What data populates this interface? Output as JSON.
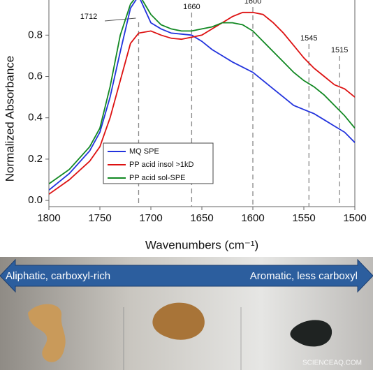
{
  "chart_data": {
    "type": "line",
    "y_label": "Normalized Absorbance",
    "x_label": "Wavenumbers (cm⁻¹)",
    "x": [
      1800,
      1780,
      1760,
      1750,
      1740,
      1730,
      1720,
      1712,
      1700,
      1690,
      1680,
      1670,
      1660,
      1650,
      1640,
      1630,
      1620,
      1610,
      1600,
      1590,
      1580,
      1570,
      1560,
      1550,
      1540,
      1530,
      1520,
      1510,
      1500
    ],
    "series": [
      {
        "name": "MQ SPE",
        "color": "#2233dd",
        "values": [
          0.05,
          0.13,
          0.24,
          0.33,
          0.5,
          0.72,
          0.93,
          0.99,
          0.86,
          0.83,
          0.81,
          0.805,
          0.8,
          0.77,
          0.73,
          0.7,
          0.67,
          0.645,
          0.62,
          0.58,
          0.54,
          0.5,
          0.46,
          0.44,
          0.42,
          0.39,
          0.36,
          0.33,
          0.28
        ]
      },
      {
        "name": "PP acid insol >1kD",
        "color": "#dd1111",
        "values": [
          0.03,
          0.1,
          0.19,
          0.26,
          0.4,
          0.58,
          0.76,
          0.81,
          0.82,
          0.8,
          0.785,
          0.78,
          0.79,
          0.8,
          0.83,
          0.86,
          0.89,
          0.91,
          0.91,
          0.9,
          0.86,
          0.81,
          0.75,
          0.69,
          0.64,
          0.6,
          0.56,
          0.54,
          0.5
        ]
      },
      {
        "name": "PP acid sol-SPE",
        "color": "#118822",
        "values": [
          0.08,
          0.15,
          0.26,
          0.35,
          0.55,
          0.8,
          0.95,
          1.0,
          0.9,
          0.85,
          0.83,
          0.82,
          0.82,
          0.83,
          0.84,
          0.86,
          0.86,
          0.85,
          0.82,
          0.77,
          0.72,
          0.67,
          0.62,
          0.58,
          0.55,
          0.51,
          0.46,
          0.41,
          0.35
        ]
      }
    ],
    "reference_lines": [
      1712,
      1660,
      1600,
      1545,
      1515
    ],
    "xlim": [
      1800,
      1500
    ],
    "xticks": [
      1800,
      1750,
      1700,
      1650,
      1600,
      1550,
      1500
    ],
    "ylim": [
      -0.03,
      0.97
    ],
    "yticks": [
      {
        "value": 0,
        "label": "0.0"
      },
      {
        "value": 0.2,
        "label": "0.2"
      },
      {
        "value": 0.4,
        "label": "0.4"
      },
      {
        "value": 0.6,
        "label": "0.6"
      },
      {
        "value": 0.8,
        "label": "0.8"
      }
    ],
    "legend": "lower-left"
  },
  "photo": {
    "left_text": "Aliphatic, carboxyl-rich",
    "right_text": "Aromatic, less carboxyl",
    "watermark": "SCIENCEAQ.COM"
  }
}
